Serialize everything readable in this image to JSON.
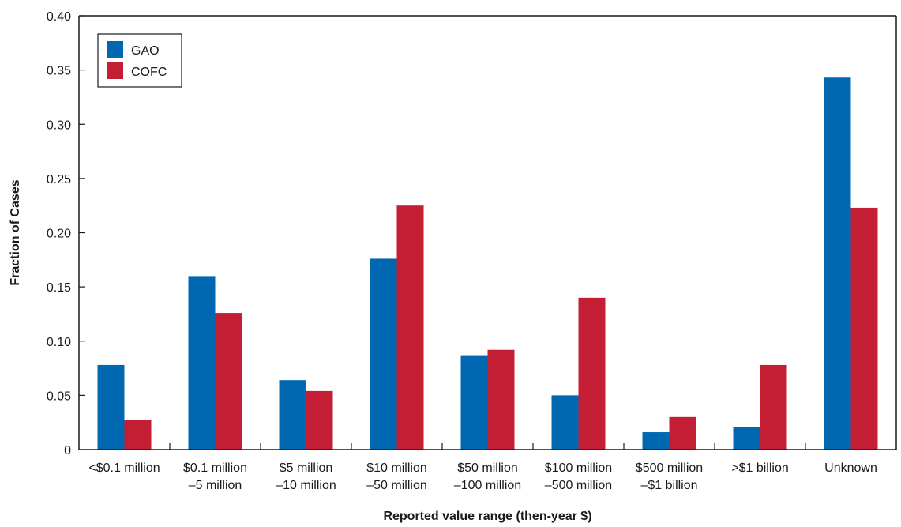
{
  "chart_data": {
    "type": "bar",
    "title": "",
    "xlabel": "Reported value range (then-year $)",
    "ylabel": "Fraction of Cases",
    "ylim": [
      0,
      0.4
    ],
    "yticks": [
      {
        "value": 0,
        "label": "0"
      },
      {
        "value": 0.05,
        "label": "0.05"
      },
      {
        "value": 0.1,
        "label": "0.10"
      },
      {
        "value": 0.15,
        "label": "0.15"
      },
      {
        "value": 0.2,
        "label": "0.20"
      },
      {
        "value": 0.25,
        "label": "0.25"
      },
      {
        "value": 0.3,
        "label": "0.30"
      },
      {
        "value": 0.35,
        "label": "0.35"
      },
      {
        "value": 0.4,
        "label": "0.40"
      }
    ],
    "categories": [
      "<$0.1 million",
      "$0.1 million –5 million",
      "$5 million –10 million",
      "$10 million –50 million",
      "$50 million –100 million",
      "$100 million –500 million",
      "$500 million –$1 billion",
      ">$1 billion",
      "Unknown"
    ],
    "category_label_lines": [
      [
        "<$0.1 million"
      ],
      [
        "$0.1 million",
        "–5 million"
      ],
      [
        "$5 million",
        "–10 million"
      ],
      [
        "$10 million",
        "–50 million"
      ],
      [
        "$50 million",
        "–100 million"
      ],
      [
        "$100 million",
        "–500 million"
      ],
      [
        "$500 million",
        "–$1 billion"
      ],
      [
        ">$1 billion"
      ],
      [
        "Unknown"
      ]
    ],
    "series": [
      {
        "name": "GAO",
        "color": "#0068b0",
        "values": [
          0.078,
          0.16,
          0.064,
          0.176,
          0.087,
          0.05,
          0.016,
          0.021,
          0.343
        ]
      },
      {
        "name": "COFC",
        "color": "#c41e34",
        "values": [
          0.027,
          0.126,
          0.054,
          0.225,
          0.092,
          0.14,
          0.03,
          0.078,
          0.223
        ]
      }
    ],
    "legend": {
      "placement": "top-left"
    },
    "grid": false
  }
}
